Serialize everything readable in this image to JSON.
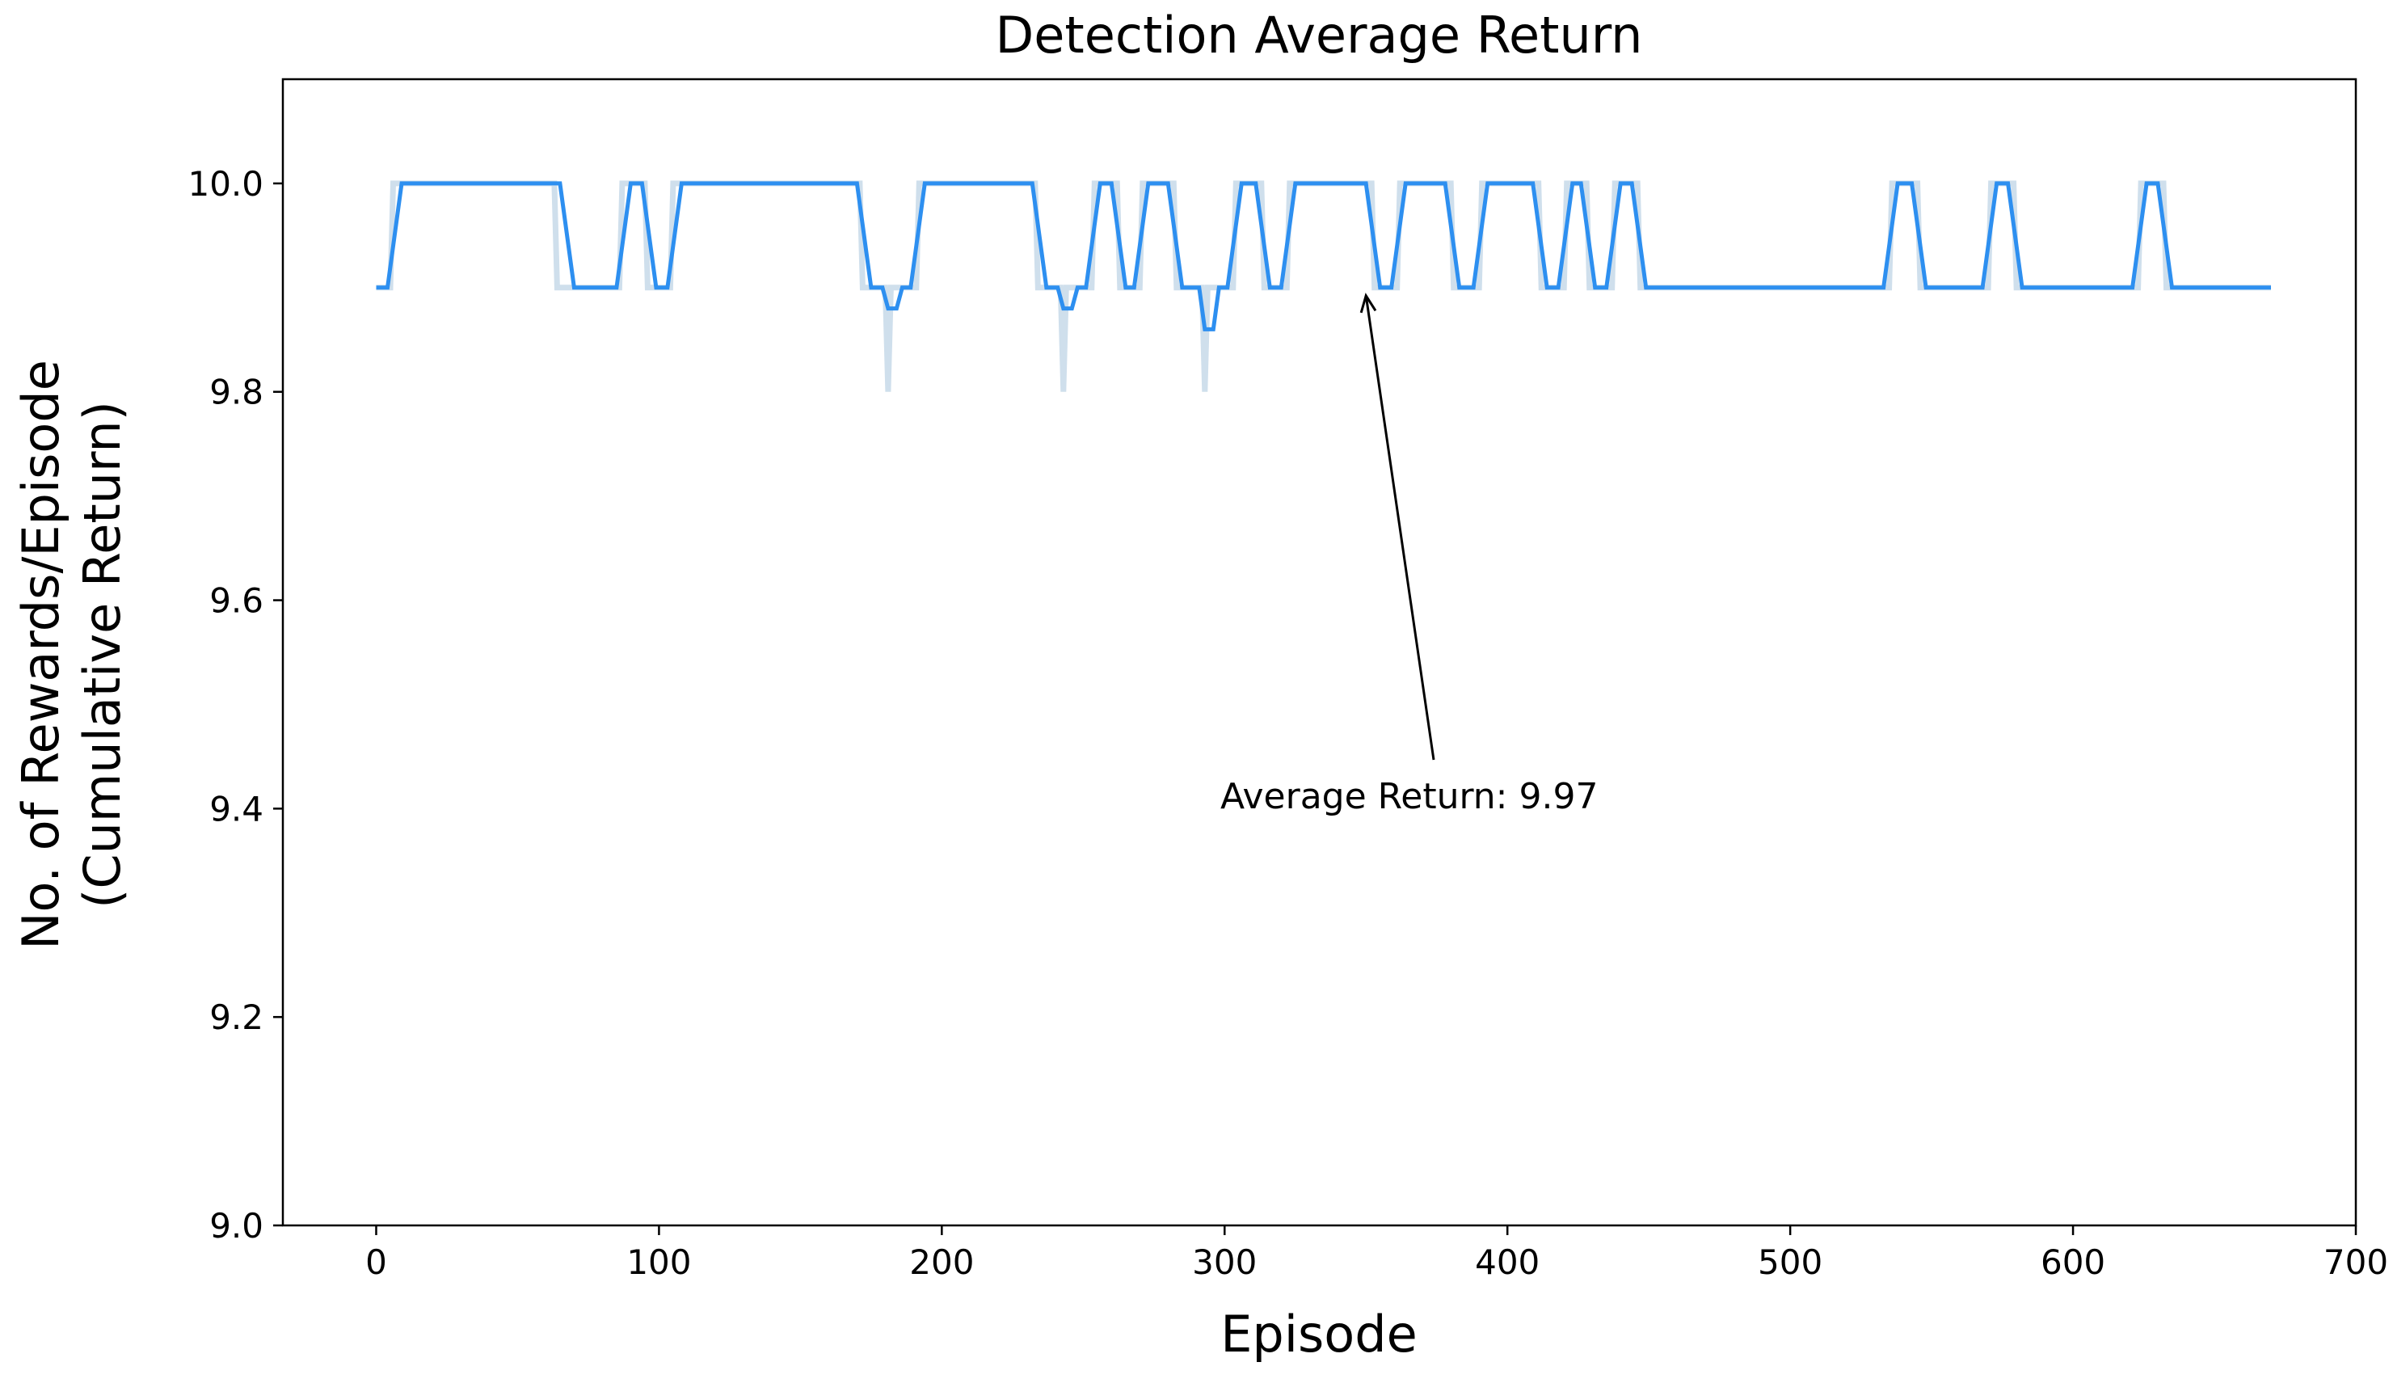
{
  "chart_data": {
    "type": "line",
    "title": "Detection Average Return",
    "xlabel": "Episode",
    "ylabel": [
      "No. of Rewards/Episode",
      "(Cumulative Return)"
    ],
    "xlim": [
      -33,
      700
    ],
    "ylim": [
      9.0,
      10.1
    ],
    "xticks": [
      0,
      100,
      200,
      300,
      400,
      500,
      600,
      700
    ],
    "xtick_labels": [
      "0",
      "100",
      "200",
      "300",
      "400",
      "500",
      "600",
      "700"
    ],
    "yticks": [
      9.0,
      9.2,
      9.4,
      9.6,
      9.8,
      10.0
    ],
    "ytick_labels": [
      "9.0",
      "9.2",
      "9.4",
      "9.6",
      "9.8",
      "10.0"
    ],
    "grid": false,
    "annotation": {
      "text": "Average Return: 9.97",
      "point": [
        350,
        9.9
      ]
    },
    "series": [
      {
        "role": "raw",
        "color": "#cfdfec",
        "x": [
          0,
          5,
          6,
          63,
          64,
          86,
          87,
          95,
          96,
          104,
          105,
          171,
          172,
          180,
          181,
          182,
          183,
          191,
          192,
          233,
          234,
          242,
          243,
          244,
          245,
          253,
          254,
          262,
          263,
          270,
          271,
          282,
          283,
          292,
          293,
          294,
          295,
          303,
          304,
          313,
          314,
          322,
          323,
          352,
          353,
          361,
          362,
          380,
          381,
          390,
          391,
          411,
          412,
          420,
          421,
          428,
          429,
          437,
          438,
          446,
          447,
          535,
          536,
          545,
          546,
          570,
          571,
          579,
          580,
          623,
          624,
          632,
          633,
          670
        ],
        "y": [
          9.9,
          9.9,
          10.0,
          10.0,
          9.9,
          9.9,
          10.0,
          10.0,
          9.9,
          9.9,
          10.0,
          10.0,
          9.9,
          9.9,
          9.8,
          9.9,
          9.9,
          9.9,
          10.0,
          10.0,
          9.9,
          9.9,
          9.8,
          9.9,
          9.9,
          9.9,
          10.0,
          10.0,
          9.9,
          9.9,
          10.0,
          10.0,
          9.9,
          9.9,
          9.8,
          9.9,
          9.9,
          9.9,
          10.0,
          10.0,
          9.9,
          9.9,
          10.0,
          10.0,
          9.9,
          9.9,
          10.0,
          10.0,
          9.9,
          9.9,
          10.0,
          10.0,
          9.9,
          9.9,
          10.0,
          10.0,
          9.9,
          9.9,
          10.0,
          10.0,
          9.9,
          9.9,
          10.0,
          10.0,
          9.9,
          9.9,
          10.0,
          10.0,
          9.9,
          9.9,
          10.0,
          10.0,
          9.9,
          9.9
        ]
      },
      {
        "role": "smoothed",
        "color": "#2d8ff0",
        "x": [
          0,
          4,
          9,
          65,
          70,
          85,
          90,
          94,
          99,
          103,
          108,
          170,
          175,
          179,
          181,
          184,
          186,
          189,
          194,
          232,
          237,
          241,
          243,
          246,
          248,
          251,
          256,
          260,
          265,
          268,
          273,
          280,
          285,
          291,
          293,
          296,
          298,
          301,
          306,
          311,
          316,
          320,
          325,
          350,
          355,
          359,
          364,
          378,
          383,
          388,
          393,
          409,
          414,
          418,
          423,
          426,
          431,
          435,
          440,
          444,
          449,
          533,
          538,
          543,
          548,
          568,
          573,
          577,
          582,
          621,
          626,
          630,
          635,
          670
        ],
        "y": [
          9.9,
          9.9,
          10.0,
          10.0,
          9.9,
          9.9,
          10.0,
          10.0,
          9.9,
          9.9,
          10.0,
          10.0,
          9.9,
          9.9,
          9.88,
          9.88,
          9.9,
          9.9,
          10.0,
          10.0,
          9.9,
          9.9,
          9.88,
          9.88,
          9.9,
          9.9,
          10.0,
          10.0,
          9.9,
          9.9,
          10.0,
          10.0,
          9.9,
          9.9,
          9.86,
          9.86,
          9.9,
          9.9,
          10.0,
          10.0,
          9.9,
          9.9,
          10.0,
          10.0,
          9.9,
          9.9,
          10.0,
          10.0,
          9.9,
          9.9,
          10.0,
          10.0,
          9.9,
          9.9,
          10.0,
          10.0,
          9.9,
          9.9,
          10.0,
          10.0,
          9.9,
          9.9,
          10.0,
          10.0,
          9.9,
          9.9,
          10.0,
          10.0,
          9.9,
          9.9,
          10.0,
          10.0,
          9.9,
          9.9
        ]
      }
    ]
  }
}
